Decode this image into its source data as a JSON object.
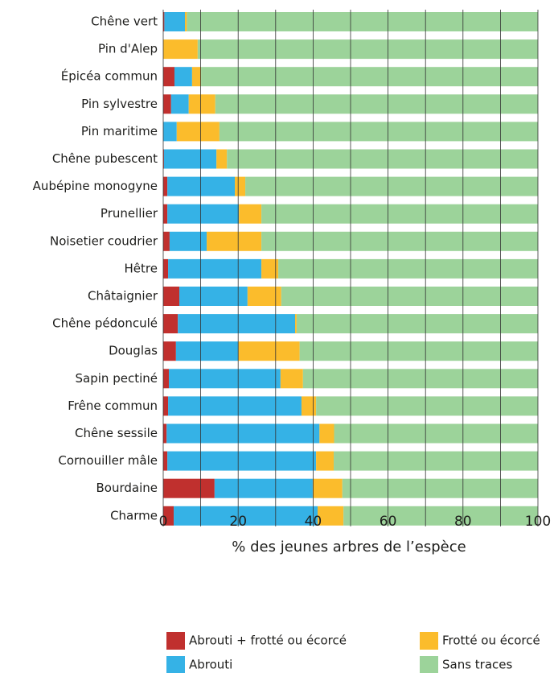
{
  "chart_data": {
    "type": "stacked_barh",
    "categories": [
      "Chêne vert",
      "Pin d'Alep",
      "Épicéa commun",
      "Pin sylvestre",
      "Pin maritime",
      "Chêne pubescent",
      "Aubépine monogyne",
      "Prunellier",
      "Noisetier coudrier",
      "Hêtre",
      "Châtaignier",
      "Chêne pédonculé",
      "Douglas",
      "Sapin pectiné",
      "Frêne commun",
      "Chêne sessile",
      "Cornouiller mâle",
      "Bourdaine",
      "Charme"
    ],
    "series": [
      {
        "name": "Abrouti + frotté ou écorcé",
        "color": "#c0302e",
        "values": [
          0.3,
          0,
          3.0,
          2.1,
          0,
          0.2,
          1.1,
          1.1,
          1.7,
          1.3,
          4.3,
          3.9,
          3.4,
          1.5,
          1.3,
          0.9,
          1.1,
          13.7,
          2.8
        ]
      },
      {
        "name": "Abrouti",
        "color": "#35b2e6",
        "values": [
          5.5,
          0,
          4.7,
          4.7,
          3.6,
          14.0,
          18.0,
          19.1,
          9.9,
          24.9,
          18.2,
          31.3,
          16.7,
          29.8,
          35.6,
          40.8,
          39.7,
          26.2,
          38.4
        ]
      },
      {
        "name": "Frotté ou écorcé",
        "color": "#fbbc2c",
        "values": [
          0.5,
          9.2,
          2.4,
          7.1,
          11.4,
          2.8,
          2.8,
          6.0,
          14.6,
          4.5,
          9.0,
          0.4,
          16.3,
          6.0,
          3.9,
          3.9,
          4.7,
          7.9,
          6.9
        ]
      },
      {
        "name": "Sans traces",
        "color": "#9cd39a",
        "values": [
          93.7,
          90.8,
          89.9,
          86.1,
          85.0,
          83.0,
          78.1,
          73.8,
          73.8,
          69.3,
          68.5,
          64.4,
          63.6,
          62.7,
          59.2,
          54.4,
          54.5,
          52.2,
          51.9
        ]
      }
    ],
    "xlabel": "% des jeunes arbres de l’espèce",
    "xlim": [
      0,
      100
    ],
    "xticks": [
      0,
      20,
      40,
      60,
      80,
      100
    ],
    "xticks_minor": [
      10,
      30,
      50,
      70,
      90
    ],
    "grid": true
  }
}
